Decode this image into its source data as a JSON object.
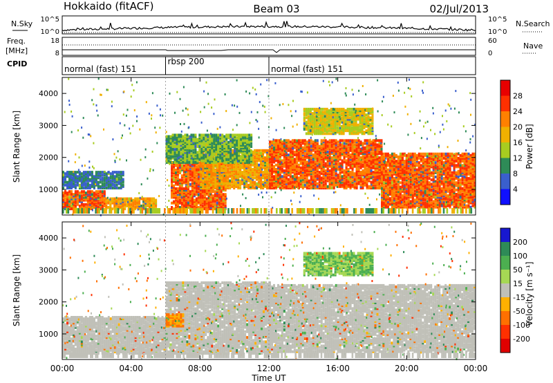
{
  "header": {
    "station": "Hokkaido (fitACF)",
    "beam": "Beam 03",
    "date": "02/Jul/2013"
  },
  "noise_panel": {
    "left_label": "N.Sky",
    "right_label": "N.Search",
    "left_ticks": [
      "10^5",
      "10^0"
    ],
    "right_ticks": [
      "10^5",
      "10^0"
    ]
  },
  "freq_panel": {
    "left_label": "Freq.",
    "left_unit": "[MHz]",
    "right_label": "Nave",
    "left_ticks": [
      "18",
      "8"
    ],
    "right_ticks": [
      "60",
      "0"
    ]
  },
  "cpid": {
    "label": "CPID",
    "segments": [
      {
        "name": "normal (fast) 151",
        "start_hr": 0,
        "end_hr": 6
      },
      {
        "name": "rbsp 200",
        "start_hr": 6,
        "end_hr": 12
      },
      {
        "name": "normal (fast) 151",
        "start_hr": 12,
        "end_hr": 24
      }
    ]
  },
  "x_axis": {
    "title": "Time UT",
    "ticks": [
      "00:00",
      "04:00",
      "08:00",
      "12:00",
      "16:00",
      "20:00",
      "00:00"
    ]
  },
  "chart_data": [
    {
      "type": "heatmap",
      "quantity": "power",
      "ylabel": "Slant Range [km]",
      "yticks": [
        "4000",
        "3000",
        "2000",
        "1000"
      ],
      "ylim": [
        200,
        4500
      ],
      "xlim_hr": [
        0,
        24
      ],
      "colorbar": {
        "title": "Power [dB]",
        "levels": [
          "28",
          "24",
          "20",
          "16",
          "12",
          "8",
          "4"
        ],
        "colors": [
          "#e80000",
          "#ff3000",
          "#ff8000",
          "#f0b000",
          "#a8cc20",
          "#2e8b57",
          "#3a5fcd",
          "#1010ff"
        ]
      },
      "echo_regions": [
        {
          "t_start": 0.0,
          "t_end": 2.5,
          "r_low": 350,
          "r_high": 900,
          "level": 28
        },
        {
          "t_start": 2.5,
          "t_end": 5.5,
          "r_low": 350,
          "r_high": 700,
          "level": 24
        },
        {
          "t_start": 0.0,
          "t_end": 3.5,
          "r_low": 1000,
          "r_high": 1500,
          "level": 12
        },
        {
          "t_start": 6.3,
          "t_end": 9.5,
          "r_low": 350,
          "r_high": 1800,
          "level": 28
        },
        {
          "t_start": 8.0,
          "t_end": 12.0,
          "r_low": 1000,
          "r_high": 2200,
          "level": 24
        },
        {
          "t_start": 6.0,
          "t_end": 11.0,
          "r_low": 1800,
          "r_high": 2700,
          "level": 16
        },
        {
          "t_start": 12.0,
          "t_end": 18.5,
          "r_low": 1000,
          "r_high": 2500,
          "level": 28
        },
        {
          "t_start": 18.5,
          "t_end": 24.0,
          "r_low": 400,
          "r_high": 2100,
          "level": 28
        },
        {
          "t_start": 14.0,
          "t_end": 18.0,
          "r_low": 2700,
          "r_high": 3500,
          "level": 20
        }
      ]
    },
    {
      "type": "heatmap",
      "quantity": "velocity",
      "ylabel": "Slant Range [km]",
      "yticks": [
        "4000",
        "3000",
        "2000",
        "1000"
      ],
      "ylim": [
        200,
        4500
      ],
      "xlim_hr": [
        0,
        24
      ],
      "colorbar": {
        "title": "Velocity [m s⁻¹]",
        "levels": [
          "200",
          "100",
          "50",
          "15",
          "-15",
          "-50",
          "-100",
          "-200"
        ],
        "colors": [
          "#1818d0",
          "#2e8b57",
          "#4caf50",
          "#a6d854",
          "#c0c0b8",
          "#ffb000",
          "#ff7000",
          "#ff3000",
          "#e00000"
        ]
      },
      "echo_regions": [
        {
          "t_start": 0.0,
          "t_end": 6.0,
          "r_low": 350,
          "r_high": 1500,
          "level": 0
        },
        {
          "t_start": 6.0,
          "t_end": 12.0,
          "r_low": 350,
          "r_high": 2600,
          "level": 0
        },
        {
          "t_start": 12.0,
          "t_end": 24.0,
          "r_low": 400,
          "r_high": 2500,
          "level": 0
        },
        {
          "t_start": 6.0,
          "t_end": 7.0,
          "r_low": 1200,
          "r_high": 1600,
          "level": -50
        },
        {
          "t_start": 14.0,
          "t_end": 18.0,
          "r_low": 2800,
          "r_high": 3500,
          "level": 50
        }
      ]
    }
  ]
}
